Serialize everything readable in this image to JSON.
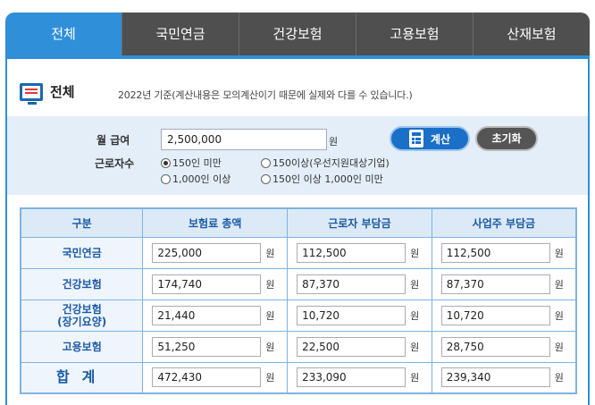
{
  "tabs": [
    "전체",
    "국민연금",
    "건강보험",
    "고용보험",
    "산재보험"
  ],
  "panel": {
    "title": "전체",
    "note": "2022년 기준(계산내용은 모의계산이기 때문에 실제와 다를 수 있습니다.)"
  },
  "form": {
    "salary_label": "월 급여",
    "salary_value": "2,500,000",
    "unit": "원",
    "workers_label": "근로자수",
    "calc_button": "계산",
    "reset_button": "초기화",
    "radios": [
      {
        "label": "150인 미만",
        "checked": true
      },
      {
        "label": "150이상(우선지원대상기업)",
        "checked": false
      },
      {
        "label": "1,000인 이상",
        "checked": false
      },
      {
        "label": "150인 이상 1,000인 미만",
        "checked": false
      }
    ]
  },
  "table": {
    "headers": [
      "구분",
      "보험료 총액",
      "근로자 부담금",
      "사업주 부담금"
    ],
    "unit": "원",
    "rows": [
      {
        "name": "국민연금",
        "sub": "",
        "total": "225,000",
        "worker": "112,500",
        "employer": "112,500"
      },
      {
        "name": "건강보험",
        "sub": "",
        "total": "174,740",
        "worker": "87,370",
        "employer": "87,370"
      },
      {
        "name": "건강보험",
        "sub": "(장기요양)",
        "total": "21,440",
        "worker": "10,720",
        "employer": "10,720"
      },
      {
        "name": "고용보험",
        "sub": "",
        "total": "51,250",
        "worker": "22,500",
        "employer": "28,750"
      },
      {
        "name": "합계",
        "sub": "",
        "total": "472,430",
        "worker": "233,090",
        "employer": "239,340"
      }
    ]
  },
  "colors": {
    "accent": "#2f8fd8",
    "tab_inactive": "#4f4f4f",
    "form_bg": "#e3eef9",
    "header_text": "#1a5aa6"
  }
}
